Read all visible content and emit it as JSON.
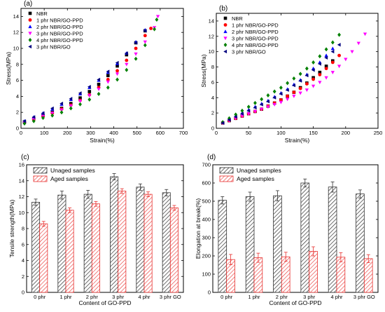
{
  "colors": {
    "NBR": "#000000",
    "1 phr NBR/GO-PPD": "#ff0000",
    "2 phr NBR/GO-PPD": "#0000ff",
    "3 phr NBR/GO-PPD": "#ff00ff",
    "4 phr NBR/GO-PPD": "#008000",
    "3 phr NBR/GO": "#000080",
    "unaged": "#333333",
    "aged": "#e8312f"
  },
  "chart_data": [
    {
      "panel": "(a)",
      "type": "scatter",
      "xlabel": "Strain(%)",
      "ylabel": "Stress(MPa)",
      "xlim": [
        0,
        700
      ],
      "ylim": [
        0,
        15
      ],
      "xticks": [
        0,
        100,
        200,
        300,
        400,
        500,
        600,
        700
      ],
      "yticks": [
        0,
        2,
        4,
        6,
        8,
        10,
        12,
        14
      ],
      "legend_position": "top-left",
      "series": [
        {
          "name": "NBR",
          "marker": "square",
          "x": [
            15,
            55,
            95,
            135,
            175,
            215,
            255,
            295,
            335,
            375,
            415,
            455,
            495,
            535
          ],
          "y": [
            0.8,
            1.2,
            1.6,
            2.0,
            2.5,
            3.1,
            3.8,
            4.6,
            5.5,
            6.6,
            7.8,
            9.2,
            10.7,
            12.2
          ]
        },
        {
          "name": "1 phr NBR/GO-PPD",
          "marker": "circle",
          "x": [
            15,
            55,
            95,
            135,
            175,
            215,
            255,
            295,
            335,
            375,
            415,
            455,
            495,
            535,
            560
          ],
          "y": [
            0.7,
            1.1,
            1.5,
            1.9,
            2.4,
            2.9,
            3.5,
            4.2,
            5.1,
            6.1,
            7.2,
            8.5,
            10.0,
            11.6,
            12.5
          ]
        },
        {
          "name": "2 phr NBR/GO-PPD",
          "marker": "triangle-up",
          "x": [
            15,
            55,
            95,
            135,
            175,
            215,
            255,
            295,
            335,
            375,
            415,
            455,
            495,
            535
          ],
          "y": [
            0.9,
            1.4,
            1.9,
            2.4,
            3.0,
            3.6,
            4.3,
            5.1,
            6.0,
            7.0,
            8.1,
            9.4,
            10.8,
            12.3
          ]
        },
        {
          "name": "3 phr NBR/GO-PPD",
          "marker": "triangle-down",
          "x": [
            15,
            55,
            95,
            135,
            175,
            215,
            255,
            295,
            335,
            375,
            415,
            455,
            495,
            535,
            575,
            590
          ],
          "y": [
            0.7,
            1.1,
            1.5,
            1.9,
            2.3,
            2.8,
            3.4,
            4.1,
            4.9,
            5.8,
            6.8,
            8.0,
            9.3,
            10.8,
            12.6,
            14.0
          ]
        },
        {
          "name": "4 phr NBR/GO-PPD",
          "marker": "diamond",
          "x": [
            15,
            55,
            95,
            135,
            175,
            215,
            255,
            295,
            335,
            375,
            415,
            455,
            495,
            535,
            575,
            585
          ],
          "y": [
            0.6,
            0.9,
            1.3,
            1.6,
            2.0,
            2.5,
            3.0,
            3.6,
            4.3,
            5.1,
            6.1,
            7.3,
            8.7,
            10.4,
            12.4,
            13.6
          ]
        },
        {
          "name": "3 phr NBR/GO",
          "marker": "triangle-left",
          "x": [
            15,
            55,
            95,
            135,
            175,
            215,
            255,
            295,
            335,
            375,
            415,
            455,
            495,
            535
          ],
          "y": [
            0.9,
            1.4,
            1.9,
            2.5,
            3.1,
            3.7,
            4.4,
            5.2,
            6.1,
            7.1,
            8.2,
            9.4,
            10.7,
            12.2
          ]
        }
      ]
    },
    {
      "panel": "(b)",
      "type": "scatter",
      "xlabel": "Strain(%)",
      "ylabel": "Stress(MPa)",
      "xlim": [
        0,
        250
      ],
      "ylim": [
        0,
        15
      ],
      "xticks": [
        0,
        50,
        100,
        150,
        200,
        250
      ],
      "yticks": [
        0,
        2,
        4,
        6,
        8,
        10,
        12,
        14
      ],
      "legend_position": "top-left",
      "series": [
        {
          "name": "NBR",
          "marker": "square",
          "x": [
            10,
            20,
            30,
            40,
            50,
            60,
            70,
            80,
            90,
            100,
            110,
            120,
            130,
            140,
            150,
            160,
            170,
            180
          ],
          "y": [
            0.7,
            1.0,
            1.3,
            1.6,
            1.9,
            2.2,
            2.5,
            2.9,
            3.3,
            3.7,
            4.2,
            4.7,
            5.3,
            5.9,
            6.6,
            7.3,
            8.1,
            8.8
          ]
        },
        {
          "name": "1 phr NBR/GO-PPD",
          "marker": "circle",
          "x": [
            10,
            20,
            30,
            40,
            50,
            60,
            70,
            80,
            90,
            100,
            110,
            120,
            130,
            140,
            150,
            160,
            170,
            180,
            190
          ],
          "y": [
            0.7,
            1.0,
            1.3,
            1.6,
            1.9,
            2.2,
            2.5,
            2.9,
            3.3,
            3.7,
            4.2,
            4.7,
            5.2,
            5.8,
            6.4,
            7.0,
            7.8,
            8.6,
            9.5
          ]
        },
        {
          "name": "2 phr NBR/GO-PPD",
          "marker": "triangle-up",
          "x": [
            10,
            20,
            30,
            40,
            50,
            60,
            70,
            80,
            90,
            100,
            110,
            120,
            130,
            140,
            150,
            160,
            170,
            180
          ],
          "y": [
            0.8,
            1.2,
            1.6,
            2.0,
            2.4,
            2.8,
            3.2,
            3.6,
            4.1,
            4.6,
            5.1,
            5.7,
            6.3,
            7.0,
            7.8,
            8.6,
            9.5,
            10.4
          ]
        },
        {
          "name": "3 phr NBR/GO-PPD",
          "marker": "triangle-down",
          "x": [
            10,
            20,
            30,
            40,
            50,
            60,
            70,
            80,
            90,
            100,
            110,
            120,
            130,
            140,
            150,
            160,
            170,
            180,
            190,
            200,
            210,
            220,
            230
          ],
          "y": [
            0.7,
            1.0,
            1.3,
            1.6,
            1.9,
            2.2,
            2.5,
            2.8,
            3.1,
            3.4,
            3.8,
            4.2,
            4.6,
            5.0,
            5.5,
            6.0,
            6.6,
            7.3,
            8.1,
            9.0,
            10.0,
            11.1,
            12.3
          ]
        },
        {
          "name": "4 phr NBR/GO-PPD",
          "marker": "diamond",
          "x": [
            10,
            20,
            30,
            40,
            50,
            60,
            70,
            80,
            90,
            100,
            110,
            120,
            130,
            140,
            150,
            160,
            170,
            180,
            190
          ],
          "y": [
            0.8,
            1.3,
            1.8,
            2.3,
            2.8,
            3.3,
            3.8,
            4.3,
            4.8,
            5.3,
            5.9,
            6.5,
            7.1,
            7.8,
            8.6,
            9.4,
            10.3,
            11.2,
            12.2
          ]
        },
        {
          "name": "3 phr NBR/GO",
          "marker": "triangle-left",
          "x": [
            10,
            20,
            30,
            40,
            50,
            60,
            70,
            80,
            90,
            100,
            110,
            120,
            130,
            140,
            150,
            160,
            170,
            180,
            190
          ],
          "y": [
            0.7,
            1.1,
            1.5,
            1.9,
            2.3,
            2.7,
            3.1,
            3.5,
            4.0,
            4.5,
            5.0,
            5.6,
            6.2,
            6.9,
            7.6,
            8.4,
            9.2,
            10.0,
            10.9
          ]
        }
      ]
    },
    {
      "panel": "(c)",
      "type": "bar",
      "xlabel": "Content of GO-PPD",
      "ylabel": "Tensile strength(MPa)",
      "ylim": [
        0,
        16
      ],
      "yticks": [
        0,
        2,
        4,
        6,
        8,
        10,
        12,
        14,
        16
      ],
      "legend_position": "top-left",
      "categories": [
        "0 phr",
        "1 phr",
        "2 phr",
        "3 phr",
        "4 phr",
        "3 phr GO"
      ],
      "series": [
        {
          "name": "Unaged samples",
          "values": [
            11.3,
            12.2,
            12.3,
            14.5,
            13.2,
            12.5
          ],
          "errors": [
            0.4,
            0.5,
            0.5,
            0.4,
            0.4,
            0.4
          ]
        },
        {
          "name": "Aged samples",
          "values": [
            8.6,
            10.3,
            11.1,
            12.7,
            12.3,
            10.6
          ],
          "errors": [
            0.3,
            0.3,
            0.3,
            0.3,
            0.3,
            0.3
          ]
        }
      ]
    },
    {
      "panel": "(d)",
      "type": "bar",
      "xlabel": "Content of GO-PPD",
      "ylabel": "Elongation at break(%)",
      "ylim": [
        0,
        700
      ],
      "yticks": [
        0,
        100,
        200,
        300,
        400,
        500,
        600,
        700
      ],
      "legend_position": "top-left",
      "categories": [
        "0 phr",
        "1 phr",
        "2 phr",
        "3 phr",
        "4 phr",
        "3 phr GO"
      ],
      "series": [
        {
          "name": "Unaged samples",
          "values": [
            505,
            525,
            530,
            600,
            578,
            540
          ],
          "errors": [
            20,
            25,
            28,
            22,
            28,
            22
          ]
        },
        {
          "name": "Aged samples",
          "values": [
            180,
            190,
            195,
            225,
            193,
            185
          ],
          "errors": [
            28,
            25,
            25,
            25,
            25,
            22
          ]
        }
      ]
    }
  ]
}
